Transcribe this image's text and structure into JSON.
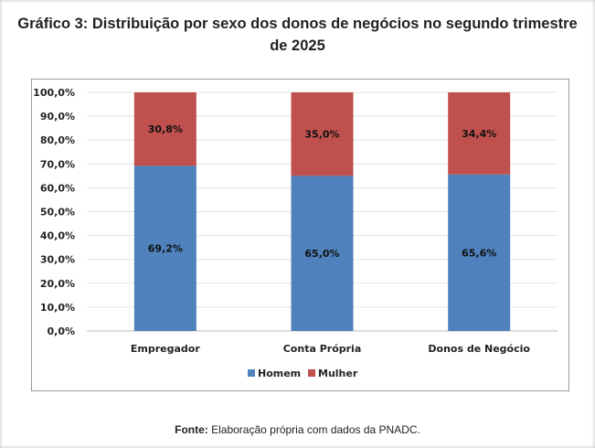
{
  "chart_data": {
    "type": "bar",
    "stacked": true,
    "title": "Gráfico 3: Distribuição por sexo dos donos de negócios no segundo trimestre de 2025",
    "categories": [
      "Empregador",
      "Conta Própria",
      "Donos de Negócio"
    ],
    "series": [
      {
        "name": "Homem",
        "values": [
          69.2,
          65.0,
          65.6
        ],
        "labels": [
          "69,2%",
          "65,0%",
          "65,6%"
        ],
        "color": "#4F81BD"
      },
      {
        "name": "Mulher",
        "values": [
          30.8,
          35.0,
          34.4
        ],
        "labels": [
          "30,8%",
          "35,0%",
          "34,4%"
        ],
        "color": "#C0504D"
      }
    ],
    "ylim": [
      0,
      100
    ],
    "yticks": [
      "0,0%",
      "10,0%",
      "20,0%",
      "30,0%",
      "40,0%",
      "50,0%",
      "60,0%",
      "70,0%",
      "80,0%",
      "90,0%",
      "100,0%"
    ],
    "xlabel": "",
    "ylabel": "",
    "grid": true,
    "legend": "bottom"
  },
  "footer": {
    "label": "Fonte:",
    "text": " Elaboração própria com dados da PNADC."
  }
}
